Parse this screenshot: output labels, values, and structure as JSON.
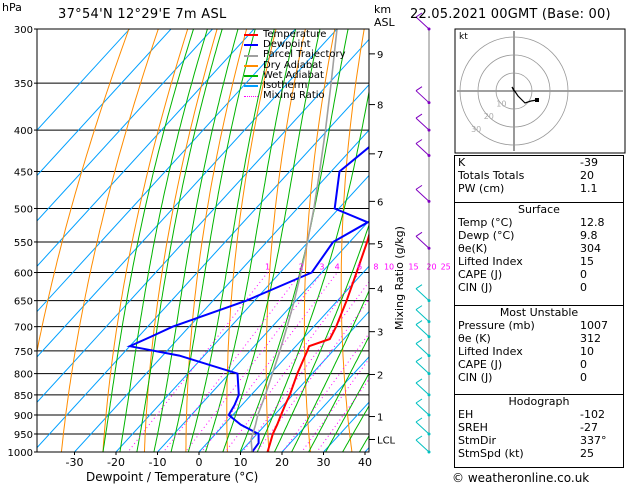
{
  "header": {
    "location": "37°54'N  12°29'E  7m  ASL",
    "datetime": "22.05.2021  00GMT  (Base: 00)",
    "hpa_label": "hPa",
    "km_label": "km",
    "asl_label": "ASL"
  },
  "legend": [
    {
      "label": "Temperature",
      "color": "#ff0000",
      "dash": ""
    },
    {
      "label": "Dewpoint",
      "color": "#0000ff",
      "dash": ""
    },
    {
      "label": "Parcel Trajectory",
      "color": "#a0a0a0",
      "dash": ""
    },
    {
      "label": "Dry Adiabat",
      "color": "#ff8c00",
      "dash": ""
    },
    {
      "label": "Wet Adiabat",
      "color": "#00b400",
      "dash": ""
    },
    {
      "label": "Isotherm",
      "color": "#00a0ff",
      "dash": ""
    },
    {
      "label": "Mixing Ratio",
      "color": "#ff00ff",
      "dash": "2,2"
    }
  ],
  "axes": {
    "xlabel": "Dewpoint / Temperature (°C)",
    "mixing_label": "Mixing Ratio (g/kg)",
    "pressure_ticks": [
      300,
      350,
      400,
      450,
      500,
      550,
      600,
      650,
      700,
      750,
      800,
      850,
      900,
      950,
      1000
    ],
    "temp_ticks": [
      -30,
      -20,
      -10,
      0,
      10,
      20,
      30,
      40
    ],
    "km_ticks": [
      {
        "label": "9",
        "p": 322
      },
      {
        "label": "8",
        "p": 372
      },
      {
        "label": "7",
        "p": 428
      },
      {
        "label": "6",
        "p": 490
      },
      {
        "label": "5",
        "p": 553
      },
      {
        "label": "4",
        "p": 628
      },
      {
        "label": "3",
        "p": 710
      },
      {
        "label": "2",
        "p": 802
      },
      {
        "label": "1",
        "p": 904
      },
      {
        "label": "LCL",
        "p": 965
      }
    ],
    "mixing_ratios": [
      "1",
      "2",
      "3",
      "4",
      "6",
      "8",
      "10",
      "15",
      "20",
      "25"
    ],
    "mixing_values": [
      1,
      2,
      3,
      4,
      6,
      8,
      10,
      15,
      20,
      25
    ]
  },
  "chart_data": {
    "type": "line",
    "title": "",
    "xlabel": "Dewpoint / Temperature (°C)",
    "ylabel": "hPa",
    "xlim": [
      -35,
      40
    ],
    "ylim": [
      1000,
      300
    ],
    "series": [
      {
        "name": "Temperature",
        "color": "#ff0000",
        "points": [
          [
            1000,
            16.5
          ],
          [
            975,
            15.2
          ],
          [
            950,
            13.8
          ],
          [
            925,
            12.8
          ],
          [
            900,
            11.6
          ],
          [
            875,
            10.4
          ],
          [
            850,
            9.3
          ],
          [
            800,
            6.4
          ],
          [
            750,
            3.8
          ],
          [
            740,
            3.2
          ],
          [
            725,
            6.6
          ],
          [
            700,
            5.4
          ],
          [
            650,
            2.2
          ],
          [
            600,
            -1.6
          ],
          [
            550,
            -5.8
          ],
          [
            500,
            -10.8
          ],
          [
            450,
            -16.2
          ],
          [
            400,
            -22.6
          ],
          [
            350,
            -29.8
          ],
          [
            300,
            -38.6
          ]
        ]
      },
      {
        "name": "Dewpoint",
        "color": "#0000ff",
        "points": [
          [
            1000,
            12.8
          ],
          [
            975,
            12.4
          ],
          [
            950,
            10.4
          ],
          [
            925,
            4.0
          ],
          [
            900,
            -1.0
          ],
          [
            875,
            -1.8
          ],
          [
            850,
            -3.0
          ],
          [
            800,
            -8.0
          ],
          [
            760,
            -26.0
          ],
          [
            740,
            -40.0
          ],
          [
            720,
            -37.0
          ],
          [
            700,
            -34.0
          ],
          [
            650,
            -22.0
          ],
          [
            600,
            -12.4
          ],
          [
            550,
            -14.0
          ],
          [
            520,
            -10.0
          ],
          [
            500,
            -21.0
          ],
          [
            450,
            -28.0
          ],
          [
            400,
            -25.0
          ],
          [
            350,
            -30.0
          ],
          [
            300,
            -42.0
          ]
        ]
      },
      {
        "name": "Parcel Trajectory",
        "color": "#a0a0a0",
        "points": [
          [
            1000,
            12.8
          ],
          [
            965,
            9.8
          ],
          [
            925,
            7.6
          ],
          [
            900,
            6.0
          ],
          [
            850,
            3.4
          ],
          [
            800,
            0.4
          ],
          [
            750,
            -2.8
          ],
          [
            700,
            -6.4
          ],
          [
            650,
            -10.4
          ],
          [
            600,
            -15.0
          ],
          [
            550,
            -20.2
          ],
          [
            500,
            -26.0
          ],
          [
            450,
            -32.8
          ],
          [
            400,
            -40.5
          ],
          [
            350,
            -49.5
          ],
          [
            300,
            -60.0
          ]
        ]
      }
    ]
  },
  "hodograph": {
    "label": "kt",
    "rings": [
      "10",
      "20",
      "30"
    ]
  },
  "indices": [
    {
      "label": "K",
      "value": "-39"
    },
    {
      "label": "Totals Totals",
      "value": "20"
    },
    {
      "label": "PW (cm)",
      "value": "1.1"
    }
  ],
  "surface": {
    "title": "Surface",
    "rows": [
      {
        "label": "Temp (°C)",
        "value": "12.8"
      },
      {
        "label": "Dewp (°C)",
        "value": "9.8"
      },
      {
        "label": "θe(K)",
        "value": "304"
      },
      {
        "label": "Lifted Index",
        "value": "15"
      },
      {
        "label": "CAPE (J)",
        "value": "0"
      },
      {
        "label": "CIN (J)",
        "value": "0"
      }
    ]
  },
  "most_unstable": {
    "title": "Most Unstable",
    "rows": [
      {
        "label": "Pressure (mb)",
        "value": "1007"
      },
      {
        "label": "θe (K)",
        "value": "312"
      },
      {
        "label": "Lifted Index",
        "value": "10"
      },
      {
        "label": "CAPE (J)",
        "value": "0"
      },
      {
        "label": "CIN (J)",
        "value": "0"
      }
    ]
  },
  "hodo_table": {
    "title": "Hodograph",
    "rows": [
      {
        "label": "EH",
        "value": "-102"
      },
      {
        "label": "SREH",
        "value": "-27"
      },
      {
        "label": "StmDir",
        "value": "337°"
      },
      {
        "label": "StmSpd (kt)",
        "value": "25"
      }
    ]
  },
  "footer": {
    "copyright": "© weatheronline.co.uk"
  },
  "colors": {
    "temp": "#ff0000",
    "dew": "#0000ff",
    "parcel": "#a0a0a0",
    "dry": "#ff8c00",
    "wet": "#00b400",
    "iso": "#00a0ff",
    "mix": "#ff00ff",
    "barb": "#8000c0",
    "barb_low": "#00c0c0"
  }
}
